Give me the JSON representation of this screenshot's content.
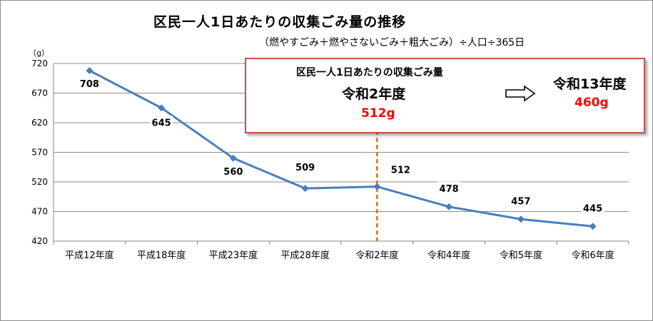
{
  "title": "区民一人1日あたりの収集ごみ量の推移",
  "subtitle": "（燃やすごみ＋燃やさないごみ＋粗大ごみ）÷人口÷365日",
  "unit": "（g）",
  "callout": {
    "label": "区民一人1日あたりの収集ごみ量",
    "year": "令和2年度",
    "value": "512g",
    "target_year": "令和13年度",
    "target_value": "460g",
    "value_color": "#ff0000",
    "border_color": "#c0504d"
  },
  "chart_data": {
    "type": "line",
    "categories": [
      "平成12年度",
      "平成18年度",
      "平成23年度",
      "平成28年度",
      "令和2年度",
      "令和4年度",
      "令和5年度",
      "令和6年度"
    ],
    "series": [
      {
        "values": [
          708,
          645,
          560,
          509,
          512,
          478,
          457,
          445
        ],
        "color": "#4a7ebb"
      }
    ],
    "data_labels": [
      "708",
      "645",
      "560",
      "509",
      "512",
      "478",
      "457",
      "445"
    ],
    "yticks": [
      "720",
      "670",
      "620",
      "570",
      "520",
      "470",
      "420"
    ],
    "ylim": [
      420,
      720
    ],
    "grid": true,
    "marker_line": {
      "category": "令和2年度",
      "color": "#e46c0a",
      "style": "dashed"
    }
  }
}
